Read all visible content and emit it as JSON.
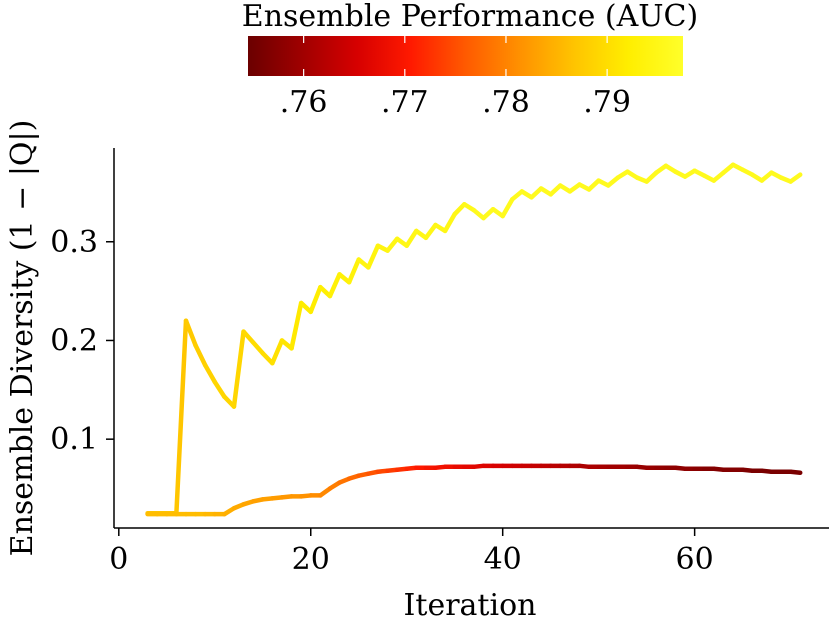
{
  "chart_data": {
    "type": "line",
    "title": "",
    "xlabel": "Iteration",
    "ylabel": "Ensemble Diversity (1 − |Q|)",
    "xlim": [
      -0.5,
      74
    ],
    "ylim": [
      0.01,
      0.395
    ],
    "x_ticks": [
      0,
      20,
      40,
      60
    ],
    "x_tick_labels": [
      "0",
      "20",
      "40",
      "60"
    ],
    "y_ticks": [
      0.1,
      0.2,
      0.3
    ],
    "y_tick_labels": [
      "0.1",
      "0.2",
      "0.3"
    ],
    "grid": false,
    "colorbar": {
      "title": "Ensemble Performance (AUC)",
      "range": [
        0.7545,
        0.7975
      ],
      "ticks": [
        0.76,
        0.77,
        0.78,
        0.79
      ],
      "tick_labels": [
        ".76",
        ".77",
        ".78",
        ".79"
      ],
      "colormap": [
        "#6b0000",
        "#a00000",
        "#d60000",
        "#ff1a00",
        "#ff5a00",
        "#ff9100",
        "#ffc400",
        "#ffee00",
        "#ffff2a"
      ]
    },
    "series": [
      {
        "x": [
          3,
          4,
          5,
          6,
          7,
          8,
          9,
          10,
          11,
          12,
          13,
          14,
          15,
          16,
          17,
          18,
          19,
          20,
          21,
          22,
          23,
          24,
          25,
          26,
          27,
          28,
          29,
          30,
          31,
          32,
          33,
          34,
          35,
          36,
          37,
          38,
          39,
          40,
          41,
          42,
          43,
          44,
          45,
          46,
          47,
          48,
          49,
          50,
          51,
          52,
          53,
          54,
          55,
          56,
          57,
          58,
          59,
          60,
          61,
          62,
          63,
          64,
          65,
          66,
          67,
          68,
          69,
          70,
          71
        ],
        "y": [
          0.025,
          0.025,
          0.025,
          0.025,
          0.22,
          0.195,
          0.175,
          0.158,
          0.143,
          0.133,
          0.209,
          0.198,
          0.187,
          0.177,
          0.2,
          0.192,
          0.238,
          0.229,
          0.254,
          0.245,
          0.267,
          0.259,
          0.282,
          0.274,
          0.296,
          0.291,
          0.303,
          0.296,
          0.311,
          0.304,
          0.317,
          0.311,
          0.328,
          0.338,
          0.332,
          0.324,
          0.333,
          0.326,
          0.343,
          0.351,
          0.345,
          0.354,
          0.348,
          0.357,
          0.351,
          0.358,
          0.353,
          0.362,
          0.357,
          0.365,
          0.371,
          0.365,
          0.361,
          0.37,
          0.377,
          0.371,
          0.366,
          0.372,
          0.367,
          0.362,
          0.37,
          0.378,
          0.373,
          0.368,
          0.362,
          0.37,
          0.365,
          0.361,
          0.368
        ],
        "auc": [
          0.787,
          0.787,
          0.787,
          0.787,
          0.787,
          0.788,
          0.788,
          0.789,
          0.789,
          0.789,
          0.789,
          0.79,
          0.79,
          0.79,
          0.791,
          0.791,
          0.792,
          0.792,
          0.792,
          0.793,
          0.793,
          0.793,
          0.794,
          0.794,
          0.794,
          0.794,
          0.795,
          0.795,
          0.795,
          0.795,
          0.795,
          0.795,
          0.795,
          0.795,
          0.796,
          0.796,
          0.796,
          0.796,
          0.796,
          0.796,
          0.796,
          0.796,
          0.796,
          0.796,
          0.796,
          0.796,
          0.796,
          0.796,
          0.796,
          0.796,
          0.796,
          0.796,
          0.796,
          0.796,
          0.796,
          0.796,
          0.796,
          0.796,
          0.796,
          0.796,
          0.796,
          0.796,
          0.796,
          0.796,
          0.796,
          0.796,
          0.796,
          0.796,
          0.796
        ]
      },
      {
        "x": [
          3,
          4,
          5,
          6,
          7,
          8,
          9,
          10,
          11,
          12,
          13,
          14,
          15,
          16,
          17,
          18,
          19,
          20,
          21,
          22,
          23,
          24,
          25,
          26,
          27,
          28,
          29,
          30,
          31,
          32,
          33,
          34,
          35,
          36,
          37,
          38,
          39,
          40,
          41,
          42,
          43,
          44,
          45,
          46,
          47,
          48,
          49,
          50,
          51,
          52,
          53,
          54,
          55,
          56,
          57,
          58,
          59,
          60,
          61,
          62,
          63,
          64,
          65,
          66,
          67,
          68,
          69,
          70,
          71
        ],
        "y": [
          0.024,
          0.024,
          0.024,
          0.024,
          0.024,
          0.024,
          0.024,
          0.024,
          0.024,
          0.03,
          0.034,
          0.037,
          0.039,
          0.04,
          0.041,
          0.042,
          0.042,
          0.043,
          0.043,
          0.05,
          0.056,
          0.06,
          0.063,
          0.065,
          0.067,
          0.068,
          0.069,
          0.07,
          0.071,
          0.071,
          0.071,
          0.072,
          0.072,
          0.072,
          0.072,
          0.073,
          0.073,
          0.073,
          0.073,
          0.073,
          0.073,
          0.073,
          0.073,
          0.073,
          0.073,
          0.073,
          0.072,
          0.072,
          0.072,
          0.072,
          0.072,
          0.072,
          0.071,
          0.071,
          0.071,
          0.071,
          0.07,
          0.07,
          0.07,
          0.07,
          0.069,
          0.069,
          0.069,
          0.068,
          0.068,
          0.067,
          0.067,
          0.067,
          0.066
        ],
        "auc": [
          0.786,
          0.786,
          0.786,
          0.786,
          0.786,
          0.786,
          0.786,
          0.785,
          0.785,
          0.784,
          0.784,
          0.783,
          0.783,
          0.783,
          0.782,
          0.782,
          0.782,
          0.781,
          0.781,
          0.78,
          0.779,
          0.778,
          0.777,
          0.776,
          0.775,
          0.774,
          0.773,
          0.772,
          0.771,
          0.77,
          0.769,
          0.769,
          0.768,
          0.767,
          0.767,
          0.766,
          0.766,
          0.765,
          0.765,
          0.764,
          0.764,
          0.763,
          0.763,
          0.762,
          0.762,
          0.761,
          0.761,
          0.761,
          0.76,
          0.76,
          0.76,
          0.759,
          0.759,
          0.759,
          0.758,
          0.758,
          0.758,
          0.758,
          0.757,
          0.757,
          0.757,
          0.757,
          0.757,
          0.756,
          0.756,
          0.756,
          0.756,
          0.756,
          0.756
        ]
      }
    ]
  }
}
